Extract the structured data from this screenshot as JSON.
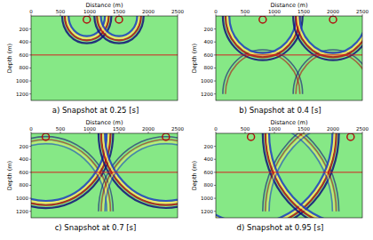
{
  "chart_data": [
    {
      "type": "image",
      "title": "a) Snapshot at 0.25 [s]",
      "x_label": "Distance (m)",
      "y_label": "Depth (m)",
      "xlim": [
        0,
        2500
      ],
      "ylim": [
        0,
        1300
      ],
      "xticks": [
        0,
        500,
        1000,
        1500,
        2000,
        2500
      ],
      "yticks": [
        200,
        400,
        600,
        800,
        1000,
        1200
      ],
      "interface_depth": 600
    },
    {
      "type": "image",
      "title": "b) Snapshot at 0.4 [s]",
      "x_label": "Distance (m)",
      "y_label": "Depth (m)",
      "xlim": [
        0,
        2500
      ],
      "ylim": [
        0,
        1300
      ],
      "xticks": [
        0,
        500,
        1000,
        1500,
        2000,
        2500
      ],
      "yticks": [
        200,
        400,
        600,
        800,
        1000,
        1200
      ],
      "interface_depth": 600
    },
    {
      "type": "image",
      "title": "c) Snapshot at 0.7 [s]",
      "x_label": "Distance (m)",
      "y_label": "Depth (m)",
      "xlim": [
        0,
        2500
      ],
      "ylim": [
        0,
        1300
      ],
      "xticks": [
        0,
        500,
        1000,
        1500,
        2000,
        2500
      ],
      "yticks": [
        200,
        400,
        600,
        800,
        1000,
        1200
      ],
      "interface_depth": 600
    },
    {
      "type": "image",
      "title": "d) Snapshot at 0.95 [s]",
      "x_label": "Distance (m)",
      "y_label": "Depth (m)",
      "xlim": [
        0,
        2500
      ],
      "ylim": [
        0,
        1300
      ],
      "xticks": [
        0,
        500,
        1000,
        1500,
        2000,
        2500
      ],
      "yticks": [
        200,
        400,
        600,
        800,
        1000,
        1200
      ],
      "interface_depth": 600
    }
  ]
}
